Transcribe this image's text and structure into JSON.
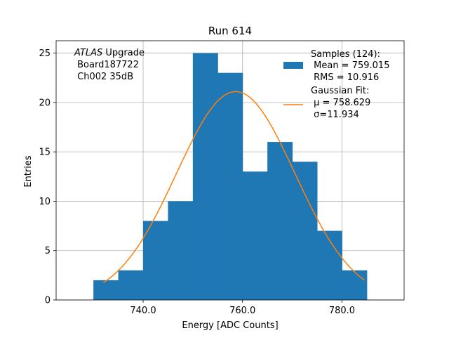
{
  "chart_data": {
    "type": "bar",
    "title": "Run 614",
    "xlabel": "Energy [ADC Counts]",
    "ylabel": "Entries",
    "xlim": [
      722.5,
      792.5
    ],
    "ylim": [
      0,
      26.25
    ],
    "grid": true,
    "x_ticks": [
      740.0,
      760.0,
      780.0
    ],
    "x_tick_labels": [
      "740.0",
      "760.0",
      "780.0"
    ],
    "y_ticks": [
      0,
      5,
      10,
      15,
      20,
      25
    ],
    "y_tick_labels": [
      "0",
      "5",
      "10",
      "15",
      "20",
      "25"
    ],
    "histogram": {
      "bin_edges": [
        730,
        735,
        740,
        745,
        750,
        755,
        760,
        765,
        770,
        775,
        780,
        785
      ],
      "counts": [
        2,
        3,
        8,
        10,
        25,
        23,
        13,
        16,
        14,
        7,
        3
      ],
      "color": "#1f77b4"
    },
    "fit": {
      "type": "gaussian",
      "amplitude": 21.1,
      "mu": 758.629,
      "sigma": 11.934,
      "x_range": [
        732,
        784.5
      ],
      "color": "#ff7f0e"
    },
    "legend": {
      "placement": "top-right",
      "entries": [
        {
          "kind": "patch",
          "lines": [
            "Samples (124):",
            " Mean = 759.015",
            " RMS = 10.916"
          ]
        },
        {
          "kind": "line",
          "lines": [
            "Gaussian Fit:",
            " μ = 758.629",
            " σ=11.934"
          ]
        }
      ]
    },
    "annotation": {
      "placement": "top-left",
      "italic": "ATLAS",
      "rest": " Upgrade",
      "lines": [
        " Board187722",
        " Ch002 35dB"
      ]
    }
  }
}
